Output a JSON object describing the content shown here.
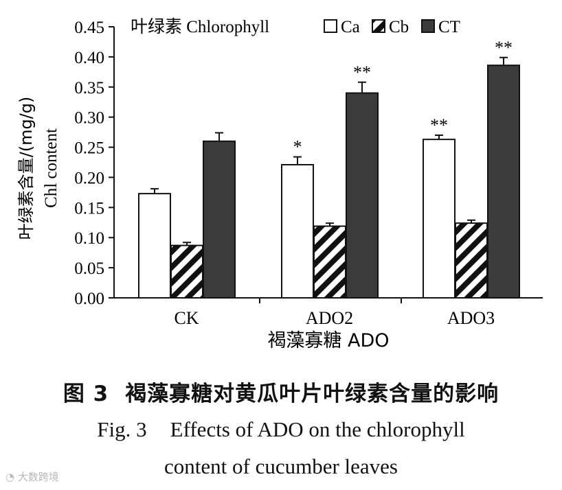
{
  "chart_data": {
    "type": "bar",
    "title": "叶绿素 Chlorophyll",
    "xlabel": "褐藻寡糖 ADO",
    "ylabel_lines": [
      "叶绿素含量/(mg/g)",
      "Chl content"
    ],
    "categories": [
      "CK",
      "ADO2",
      "ADO3"
    ],
    "ylim": [
      0,
      0.45
    ],
    "yticks": [
      "0.00",
      "0.05",
      "0.10",
      "0.15",
      "0.20",
      "0.25",
      "0.30",
      "0.35",
      "0.40",
      "0.45"
    ],
    "legend_position": "top",
    "series": [
      {
        "name": "Ca",
        "fill": "white",
        "values": [
          0.173,
          0.221,
          0.263
        ],
        "errors": [
          0.008,
          0.013,
          0.007
        ],
        "significance": [
          "",
          "*",
          "**"
        ]
      },
      {
        "name": "Cb",
        "fill": "hatched",
        "values": [
          0.087,
          0.119,
          0.124
        ],
        "errors": [
          0.005,
          0.005,
          0.005
        ],
        "significance": [
          "",
          "",
          ""
        ]
      },
      {
        "name": "CT",
        "fill": "dark",
        "values": [
          0.26,
          0.34,
          0.386
        ],
        "errors": [
          0.014,
          0.018,
          0.013
        ],
        "significance": [
          "",
          "**",
          "**"
        ]
      }
    ],
    "colors": {
      "dark": "#3c3c3c",
      "outline": "#111111",
      "background": "#ffffff"
    }
  },
  "caption": {
    "zh_label": "图 3",
    "zh_text": "褐藻寡糖对黄瓜叶片叶绿素含量的影响",
    "en_label": "Fig. 3",
    "en_line1": "Effects of ADO on the chlorophyll",
    "en_line2": "content of cucumber leaves"
  },
  "watermark": "大数跨境"
}
